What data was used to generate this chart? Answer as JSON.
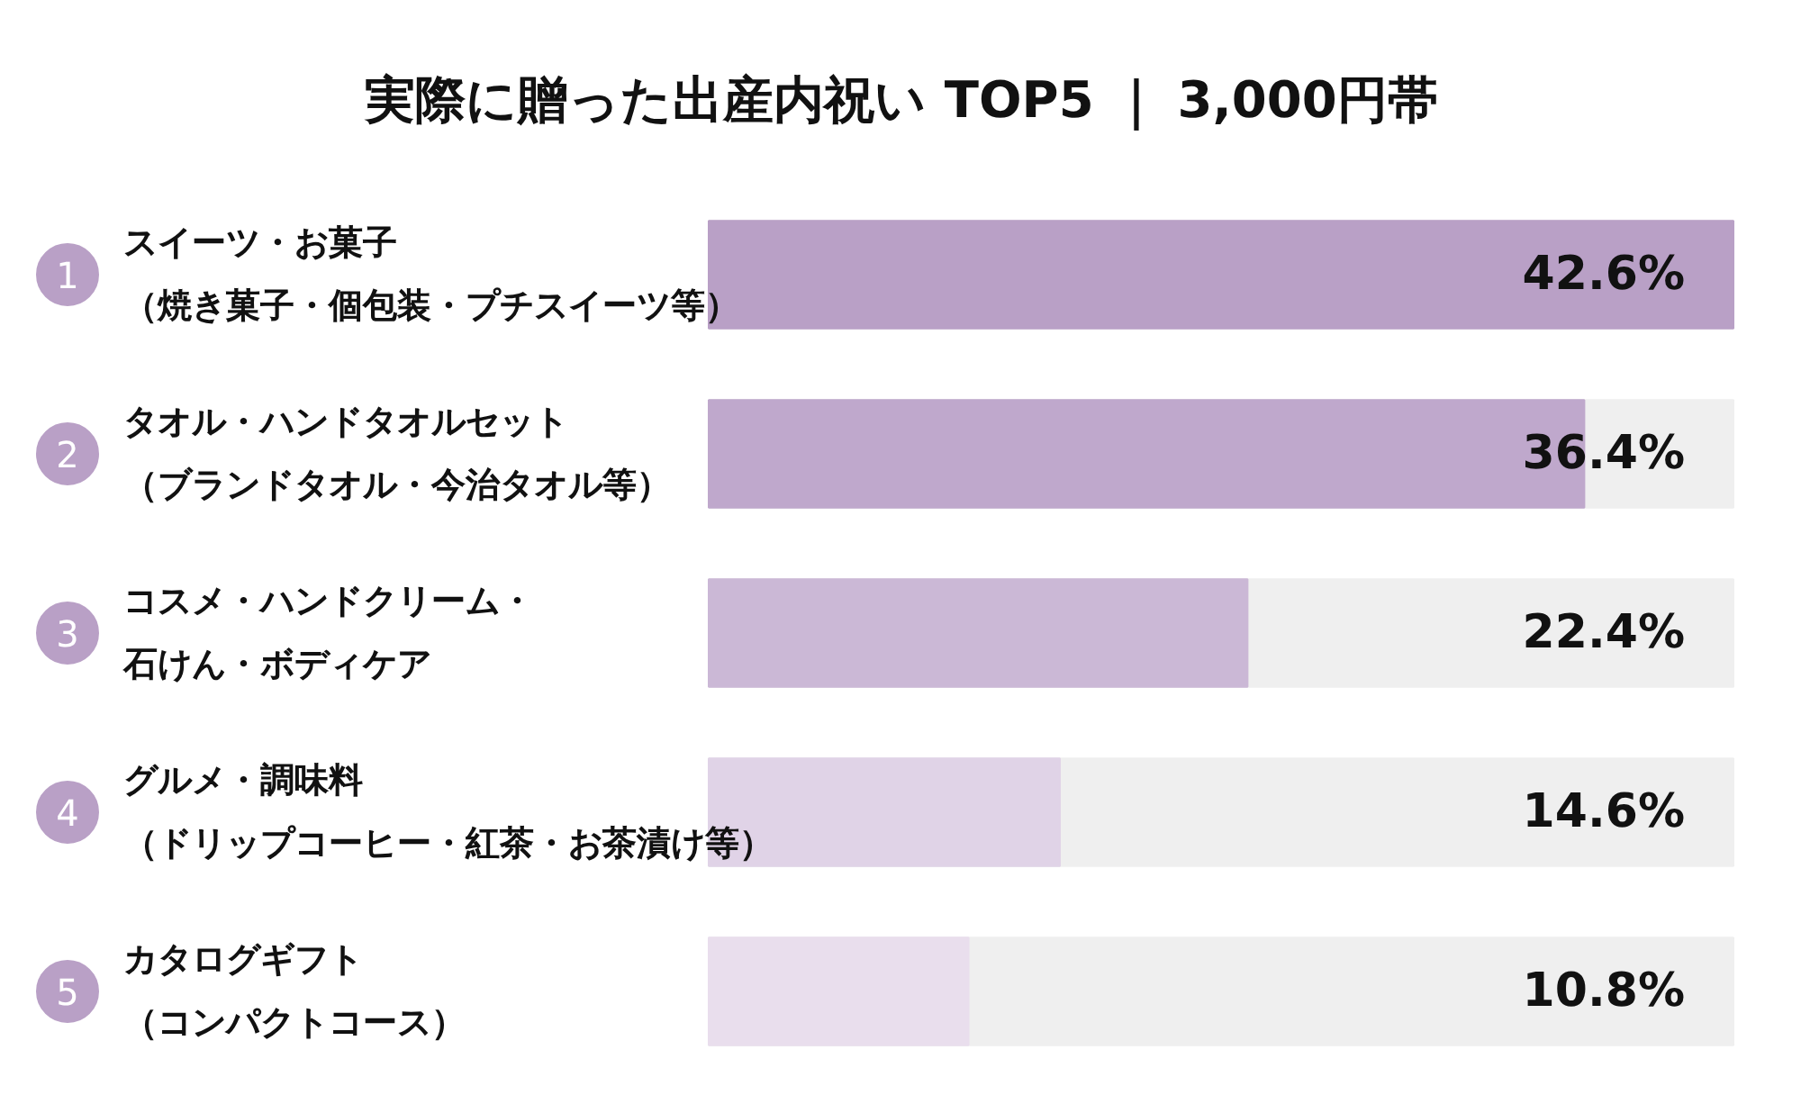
{
  "chart_data": {
    "type": "bar",
    "orientation": "horizontal",
    "title": "実際に贈った出産内祝い TOP5 ｜ 3,000円帯",
    "categories": [
      "スイーツ・お菓子（焼き菓子・個包装・プチスイーツ等）",
      "タオル・ハンドタオルセット（ブランドタオル・今治タオル等）",
      "コスメ・ハンドクリーム・石けん・ボディケア",
      "グルメ・調味料（ドリップコーヒー・紅茶・お茶漬け等）",
      "カタログギフト（コンパクトコース）"
    ],
    "values": [
      42.6,
      36.4,
      22.4,
      14.6,
      10.8
    ],
    "value_labels": [
      "42.6%",
      "36.4%",
      "22.4%",
      "14.6%",
      "10.8%"
    ],
    "colors": [
      "#b9a0c6",
      "#bfa8cc",
      "#cbb8d6",
      "#e0d3e7",
      "#e9deed"
    ],
    "annotations": [
      "1",
      "2",
      "3",
      "4",
      "5"
    ],
    "bands": [
      {
        "axis": "x",
        "from": 0,
        "to": 42.6,
        "color": "#efefef"
      }
    ]
  }
}
